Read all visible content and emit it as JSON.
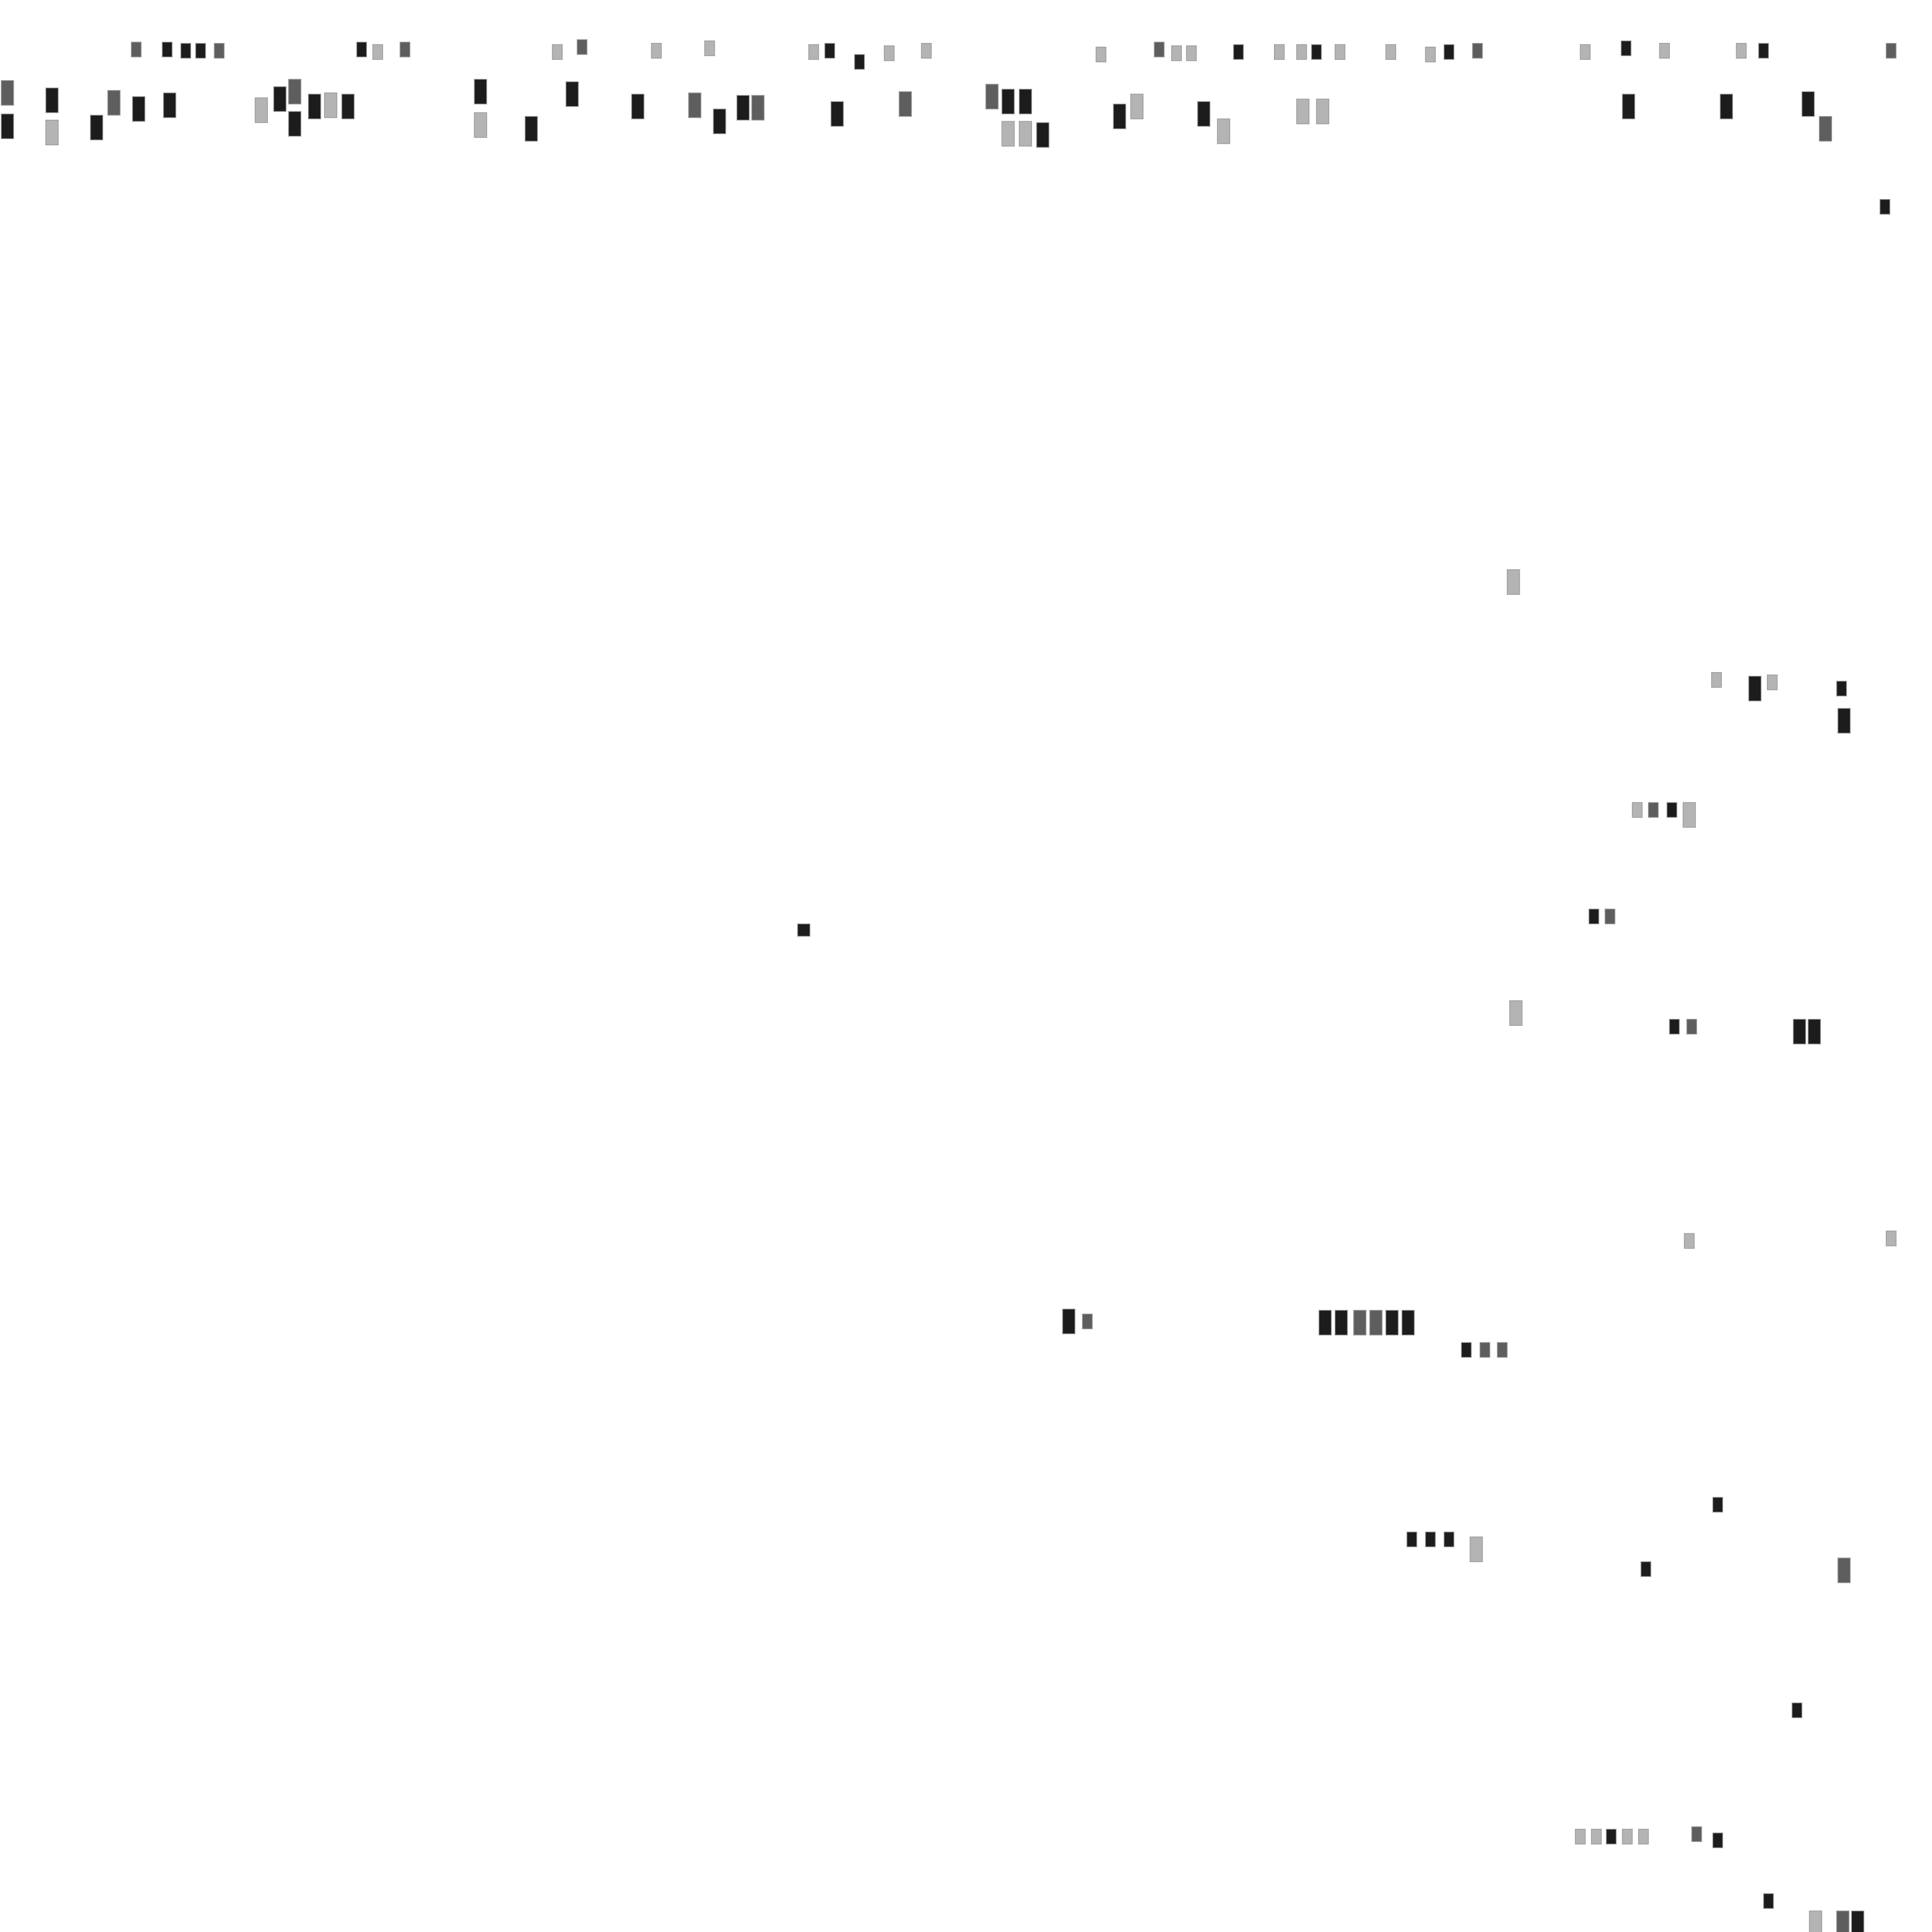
{
  "palette": {
    "dark": "#1c1c1c",
    "mid": "#5e5e5e",
    "light": "#b4b4b4"
  }
}
